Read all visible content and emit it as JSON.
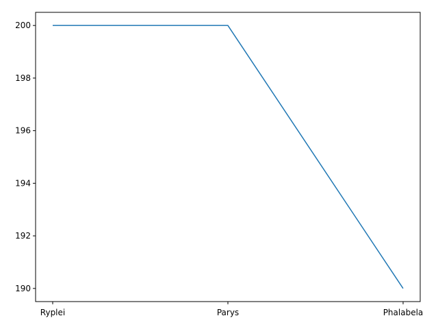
{
  "chart_data": {
    "type": "line",
    "categories": [
      "Ryplei",
      "Parys",
      "Phalabela"
    ],
    "series": [
      {
        "values": [
          200,
          200,
          190
        ],
        "color": "#1f77b4"
      }
    ],
    "title": "",
    "xlabel": "",
    "ylabel": "",
    "ylim": [
      189.5,
      200.5
    ],
    "yticks": [
      190,
      192,
      194,
      196,
      198,
      200
    ],
    "grid": false,
    "legend": "none"
  }
}
